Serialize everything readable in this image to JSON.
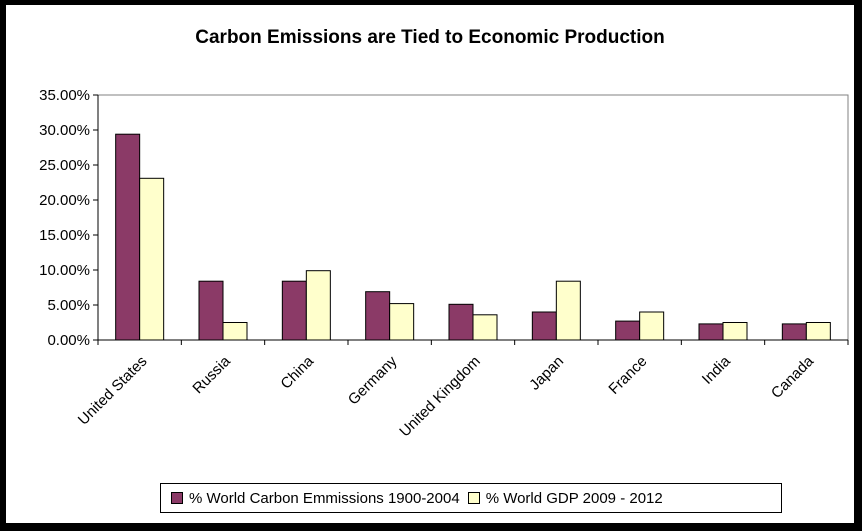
{
  "chart_data": {
    "type": "bar",
    "title": "Carbon Emissions are Tied to Economic Production",
    "categories": [
      "United States",
      "Russia",
      "China",
      "Germany",
      "United Kingdom",
      "Japan",
      "France",
      "India",
      "Canada"
    ],
    "series": [
      {
        "name": "% World Carbon Emmissions 1900-2004",
        "color": "#8b3a67",
        "values": [
          29.4,
          8.4,
          8.4,
          6.9,
          5.1,
          4.0,
          2.7,
          2.3,
          2.3
        ]
      },
      {
        "name": "% World GDP 2009 - 2012",
        "color": "#ffffcc",
        "values": [
          23.1,
          2.5,
          9.9,
          5.2,
          3.6,
          8.4,
          4.0,
          2.5,
          2.5
        ]
      }
    ],
    "ylim": [
      0,
      35
    ],
    "yticks": [
      "0.00%",
      "5.00%",
      "10.00%",
      "15.00%",
      "20.00%",
      "25.00%",
      "30.00%",
      "35.00%"
    ],
    "ytick_values": [
      0,
      5,
      10,
      15,
      20,
      25,
      30,
      35
    ],
    "grid": false,
    "legend_position": "bottom"
  }
}
